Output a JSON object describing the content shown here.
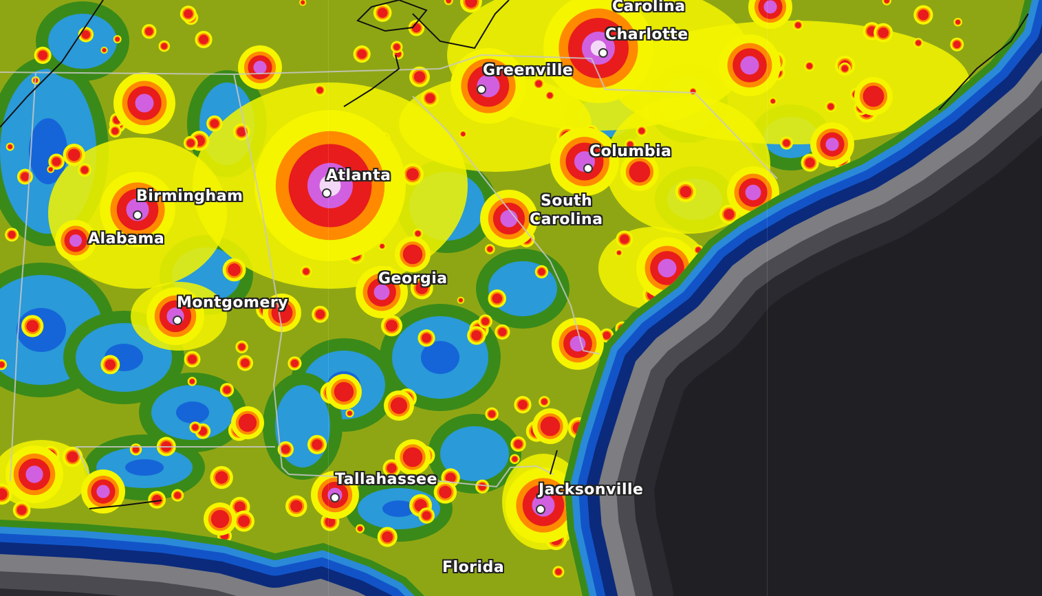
{
  "map": {
    "type": "light pollution map",
    "colors": {
      "ocean": "#202024",
      "land_base": "#8fa614",
      "dark_sky": "#1565d8",
      "rural": "#2a9ad8",
      "green": "#3a8a1a",
      "yellow": "#f5f500",
      "orange": "#ff8a00",
      "red": "#e81c1c",
      "magenta": "#d060e0",
      "border": "#c8c8c8"
    },
    "labels": [
      {
        "id": "carolina",
        "text": "Carolina",
        "kind": "state"
      },
      {
        "id": "charlotte",
        "text": "Charlotte",
        "kind": "city"
      },
      {
        "id": "greenville",
        "text": "Greenville",
        "kind": "city"
      },
      {
        "id": "columbia",
        "text": "Columbia",
        "kind": "city"
      },
      {
        "id": "atlanta",
        "text": "Atlanta",
        "kind": "city"
      },
      {
        "id": "birmingham",
        "text": "Birmingham",
        "kind": "city"
      },
      {
        "id": "alabama",
        "text": "Alabama",
        "kind": "state"
      },
      {
        "id": "south-carolina-1",
        "text": "South",
        "kind": "state"
      },
      {
        "id": "south-carolina-2",
        "text": "Carolina",
        "kind": "state"
      },
      {
        "id": "georgia",
        "text": "Georgia",
        "kind": "state"
      },
      {
        "id": "montgomery",
        "text": "Montgomery",
        "kind": "city"
      },
      {
        "id": "tallahassee",
        "text": "Tallahassee",
        "kind": "city"
      },
      {
        "id": "jacksonville",
        "text": "Jacksonville",
        "kind": "city"
      },
      {
        "id": "florida",
        "text": "Florida",
        "kind": "state"
      }
    ]
  }
}
